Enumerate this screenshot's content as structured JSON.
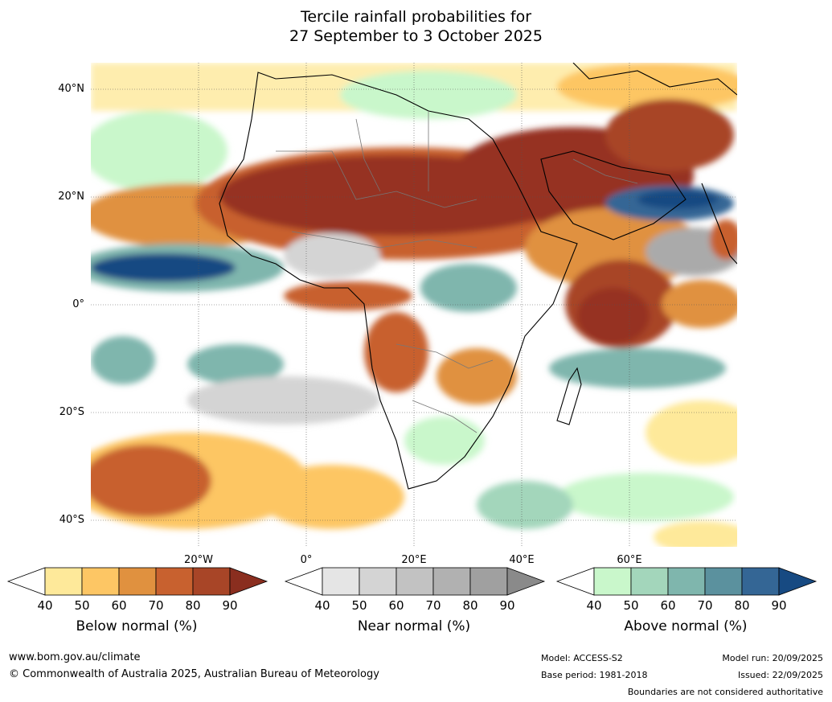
{
  "title_line1": "Tercile rainfall probabilities for",
  "title_line2": "27 September to 3 October 2025",
  "lat_labels": [
    "40°N",
    "20°N",
    "0°",
    "20°S",
    "40°S"
  ],
  "lon_labels": [
    "20°W",
    "0°",
    "20°E",
    "40°E",
    "60°E"
  ],
  "colorbars": [
    {
      "caption": "Below normal (%)",
      "ticks": [
        "40",
        "50",
        "60",
        "70",
        "80",
        "90"
      ],
      "colors": [
        "#ffffff",
        "#fee99a",
        "#fdc664",
        "#e0913f",
        "#c8612f",
        "#a84527",
        "#8a2e1f"
      ]
    },
    {
      "caption": "Near normal (%)",
      "ticks": [
        "40",
        "50",
        "60",
        "70",
        "80",
        "90"
      ],
      "colors": [
        "#ffffff",
        "#e5e5e5",
        "#d4d4d4",
        "#c2c2c2",
        "#b1b1b1",
        "#a0a0a0",
        "#8a8a8a"
      ]
    },
    {
      "caption": "Above normal (%)",
      "ticks": [
        "40",
        "50",
        "60",
        "70",
        "80",
        "90"
      ],
      "colors": [
        "#ffffff",
        "#c9f7cb",
        "#a3d6bb",
        "#7fb6ad",
        "#5b919e",
        "#346695",
        "#174a82"
      ]
    }
  ],
  "footer": {
    "website": "www.bom.gov.au/climate",
    "copyright": "© Commonwealth of Australia 2025, Australian Bureau of Meteorology",
    "model": "Model: ACCESS-S2",
    "base_period": "Base period: 1981-2018",
    "model_run": "Model run: 20/09/2025",
    "issued": "Issued: 22/09/2025",
    "disclaimer": "Boundaries are not considered authoritative"
  },
  "palette": {
    "dry_dark": "#963020",
    "dry_mid": "#c8612f",
    "dry_light": "#fdc664",
    "dry_pale": "#fee99a",
    "near": "#d4d4d4",
    "near_dark": "#aaaaaa",
    "wet_pale": "#c9f7cb",
    "wet_mid": "#7fb6ad",
    "wet_dark": "#346695",
    "wet_deep": "#174a82"
  }
}
